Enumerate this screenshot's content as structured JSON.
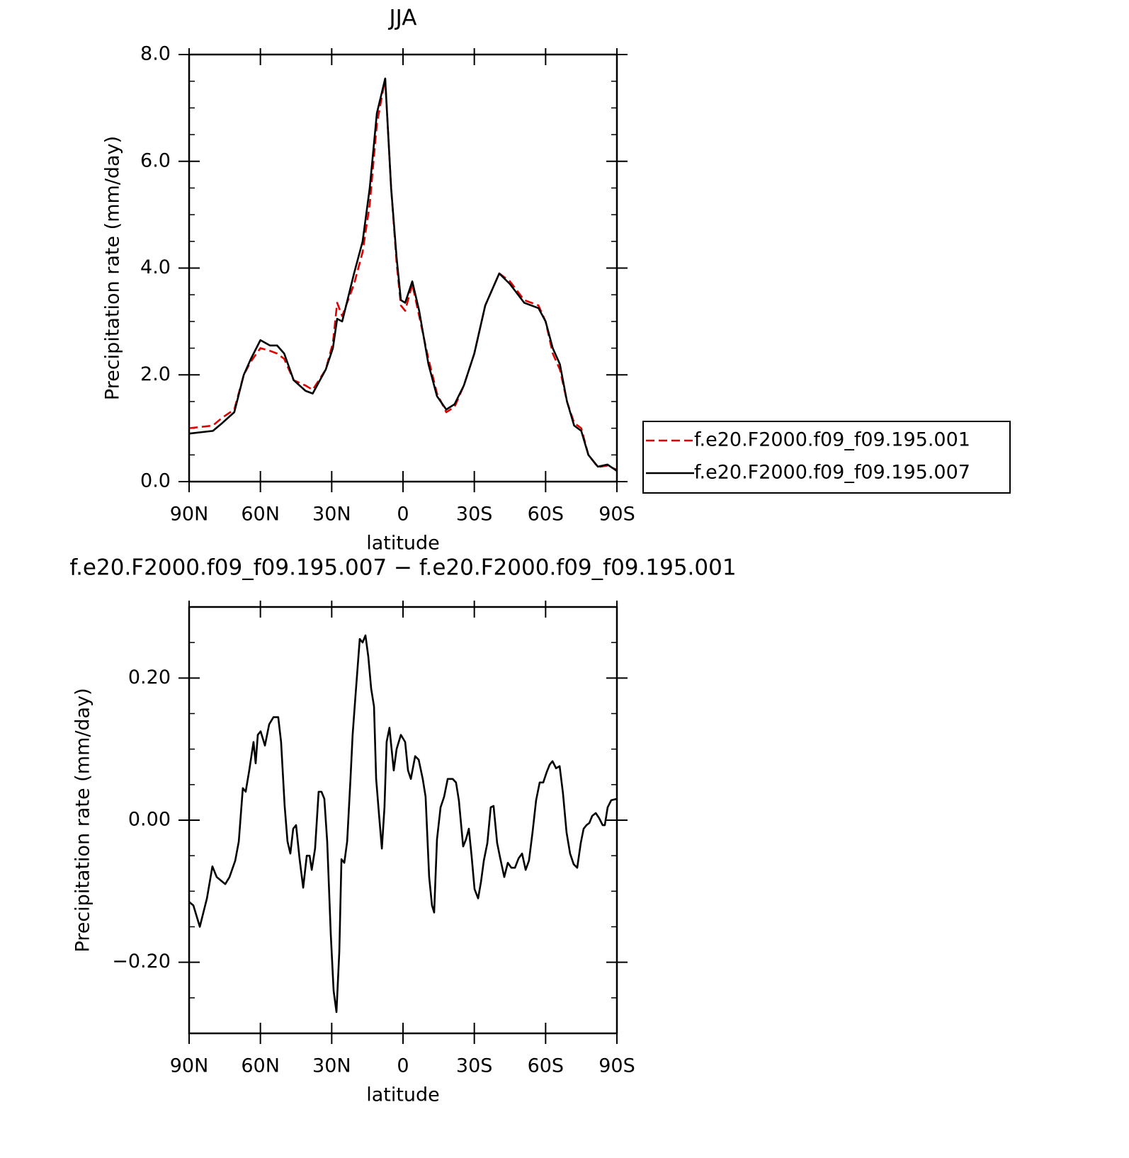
{
  "chart_data": [
    {
      "type": "line",
      "title": "JJA",
      "xlabel": "latitude",
      "ylabel": "Precipitation rate (mm/day)",
      "xlim": [
        90,
        -90
      ],
      "xticks": [
        {
          "value": 90,
          "label": "90N"
        },
        {
          "value": 60,
          "label": "60N"
        },
        {
          "value": 30,
          "label": "30N"
        },
        0,
        {
          "value": -30,
          "label": "30S"
        },
        {
          "value": -60,
          "label": "60S"
        },
        {
          "value": -90,
          "label": "90S"
        }
      ],
      "ylim": [
        0,
        8
      ],
      "yticks": [
        {
          "value": 0,
          "label": "0.0"
        },
        {
          "value": 2,
          "label": "2.0"
        },
        {
          "value": 4,
          "label": "4.0"
        },
        {
          "value": 6,
          "label": "6.0"
        },
        {
          "value": 8,
          "label": "8.0"
        }
      ],
      "legend": "right",
      "x": [
        90,
        80,
        76,
        71,
        67,
        64,
        60,
        56,
        53,
        50,
        46,
        41,
        38,
        32.5,
        29.5,
        27.7,
        25.6,
        20.6,
        17,
        14,
        11,
        7.5,
        5,
        2.7,
        0.9,
        -0.9,
        -3.9,
        -6.8,
        -10.7,
        -14.3,
        -18.2,
        -21.7,
        -25.6,
        -30,
        -34.6,
        -40.5,
        -45,
        -51,
        -57,
        -60,
        -63,
        -66,
        -69,
        -72,
        -75,
        -78,
        -82,
        -86,
        -90
      ],
      "series": [
        {
          "name": "f.e20.F2000.f09_f09.195.001",
          "color": "#e00000",
          "dashed": true,
          "values": [
            1.0,
            1.05,
            1.2,
            1.35,
            2.0,
            2.25,
            2.5,
            2.45,
            2.4,
            2.3,
            1.9,
            1.8,
            1.72,
            2.1,
            2.6,
            3.35,
            3.1,
            3.7,
            4.3,
            5.2,
            6.7,
            7.55,
            5.5,
            4.1,
            3.3,
            3.2,
            3.7,
            3.1,
            2.3,
            1.65,
            1.3,
            1.4,
            1.8,
            2.4,
            3.3,
            3.9,
            3.75,
            3.4,
            3.3,
            3.0,
            2.4,
            2.1,
            1.5,
            1.1,
            1.0,
            0.5,
            0.27,
            0.3,
            0.22
          ]
        },
        {
          "name": "f.e20.F2000.f09_f09.195.007",
          "color": "#000000",
          "dashed": false,
          "values": [
            0.9,
            0.95,
            1.1,
            1.3,
            2.0,
            2.3,
            2.65,
            2.55,
            2.55,
            2.4,
            1.9,
            1.7,
            1.65,
            2.1,
            2.5,
            3.05,
            3.0,
            3.9,
            4.5,
            5.5,
            6.9,
            7.55,
            5.5,
            4.2,
            3.4,
            3.35,
            3.75,
            3.2,
            2.2,
            1.6,
            1.35,
            1.45,
            1.8,
            2.4,
            3.3,
            3.9,
            3.7,
            3.35,
            3.25,
            3.0,
            2.5,
            2.2,
            1.5,
            1.05,
            0.95,
            0.5,
            0.28,
            0.32,
            0.2
          ]
        }
      ]
    },
    {
      "type": "line",
      "title": "f.e20.F2000.f09_f09.195.007 − f.e20.F2000.f09_f09.195.001",
      "xlabel": "latitude",
      "ylabel": "Precipitation rate (mm/day)",
      "xlim": [
        90,
        -90
      ],
      "xticks": [
        {
          "value": 90,
          "label": "90N"
        },
        {
          "value": 60,
          "label": "60N"
        },
        {
          "value": 30,
          "label": "30N"
        },
        0,
        {
          "value": -30,
          "label": "30S"
        },
        {
          "value": -60,
          "label": "60S"
        },
        {
          "value": -90,
          "label": "90S"
        }
      ],
      "ylim": [
        -0.3,
        0.3
      ],
      "yticks": [
        {
          "value": -0.2,
          "label": "−0.20"
        },
        {
          "value": 0,
          "label": "0.00"
        },
        {
          "value": 0.2,
          "label": "0.20"
        }
      ],
      "color": "#000000",
      "x": [
        90,
        88.2,
        85.5,
        82.5,
        80.2,
        78.4,
        74.8,
        73.0,
        70.6,
        69.1,
        67.4,
        66.2,
        64.7,
        62.9,
        62.0,
        61.1,
        59.9,
        58.1,
        56.3,
        54.5,
        52.5,
        51.3,
        49.8,
        48.6,
        47.4,
        46.2,
        45.0,
        43.5,
        42.0,
        40.5,
        39.3,
        38.4,
        37.0,
        35.5,
        34.3,
        33.1,
        31.9,
        30.4,
        29.2,
        28.0,
        26.8,
        25.9,
        24.7,
        23.5,
        22.1,
        21.2,
        20.0,
        18.2,
        17.0,
        15.8,
        14.6,
        13.4,
        12.2,
        11.3,
        10.1,
        8.9,
        7.8,
        6.9,
        5.7,
        3.9,
        2.7,
        0.9,
        -0.9,
        -2.1,
        -3.3,
        -5.1,
        -6.6,
        -8.3,
        -9.5,
        -11.0,
        -12.2,
        -13.1,
        -14.3,
        -15.8,
        -17.3,
        -18.8,
        -20.9,
        -22.3,
        -23.5,
        -25.3,
        -26.5,
        -27.7,
        -28.9,
        -30.1,
        -31.6,
        -32.8,
        -34.0,
        -35.5,
        -36.9,
        -38.1,
        -39.6,
        -40.8,
        -42.6,
        -44.1,
        -45.6,
        -47.1,
        -48.6,
        -50.1,
        -51.6,
        -53.0,
        -54.5,
        -56.0,
        -57.5,
        -59.0,
        -60.5,
        -61.7,
        -62.9,
        -64.4,
        -65.9,
        -67.3,
        -68.8,
        -70.3,
        -71.8,
        -73.3,
        -74.8,
        -76.0,
        -77.2,
        -78.4,
        -79.6,
        -81.1,
        -82.5,
        -84.0,
        -84.9,
        -86.1,
        -87.6,
        -90
      ],
      "values": [
        -0.115,
        -0.12,
        -0.15,
        -0.11,
        -0.065,
        -0.08,
        -0.09,
        -0.08,
        -0.057,
        -0.03,
        0.045,
        0.04,
        0.07,
        0.11,
        0.08,
        0.12,
        0.125,
        0.105,
        0.135,
        0.145,
        0.145,
        0.11,
        0.02,
        -0.03,
        -0.047,
        -0.012,
        -0.007,
        -0.055,
        -0.095,
        -0.05,
        -0.05,
        -0.07,
        -0.04,
        0.04,
        0.04,
        0.03,
        -0.03,
        -0.16,
        -0.24,
        -0.27,
        -0.185,
        -0.055,
        -0.06,
        -0.03,
        0.058,
        0.12,
        0.175,
        0.255,
        0.25,
        0.26,
        0.23,
        0.185,
        0.16,
        0.058,
        0.008,
        -0.04,
        0.018,
        0.11,
        0.13,
        0.07,
        0.1,
        0.12,
        0.11,
        0.07,
        0.058,
        0.09,
        0.085,
        0.058,
        0.033,
        -0.08,
        -0.12,
        -0.13,
        -0.027,
        0.018,
        0.033,
        0.058,
        0.058,
        0.053,
        0.028,
        -0.037,
        -0.027,
        -0.012,
        -0.052,
        -0.097,
        -0.11,
        -0.087,
        -0.057,
        -0.032,
        0.018,
        0.02,
        -0.032,
        -0.052,
        -0.08,
        -0.06,
        -0.067,
        -0.067,
        -0.054,
        -0.047,
        -0.07,
        -0.057,
        -0.017,
        0.028,
        0.053,
        0.053,
        0.068,
        0.078,
        0.083,
        0.073,
        0.076,
        0.038,
        -0.017,
        -0.047,
        -0.062,
        -0.067,
        -0.032,
        -0.012,
        -0.007,
        -0.004,
        0.006,
        0.01,
        0.003,
        -0.007,
        -0.007,
        0.018,
        0.028,
        0.03
      ]
    }
  ]
}
